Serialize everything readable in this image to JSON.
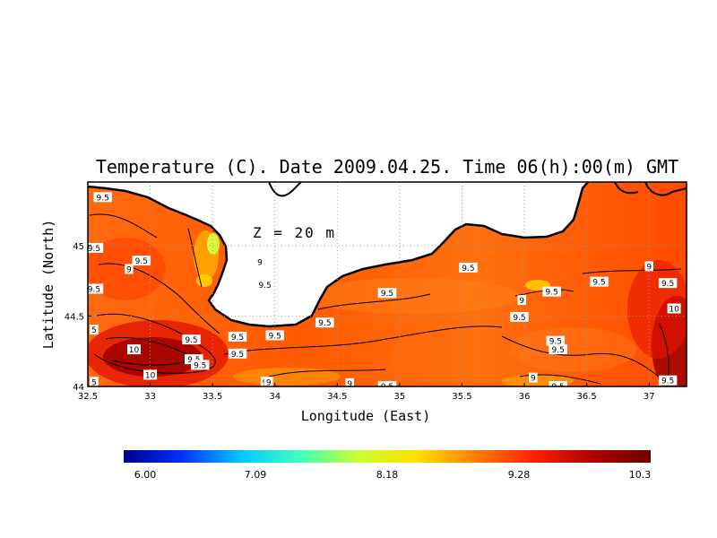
{
  "chart_data": {
    "type": "heatmap",
    "title": "Temperature (C). Date 2009.04.25. Time 06(h):00(m) GMT",
    "xlabel": "Longitude (East)",
    "ylabel": "Latitude (North)",
    "annotation": "Z = 20 m",
    "xlim": [
      32.5,
      37.3
    ],
    "ylim": [
      44.0,
      45.45
    ],
    "x_ticks": [
      "32.5",
      "33",
      "33.5",
      "34",
      "34.5",
      "35",
      "35.5",
      "36",
      "36.5",
      "37"
    ],
    "y_ticks": [
      "44",
      "44.5",
      "45"
    ],
    "grid": true,
    "colorbar": {
      "min": 6.0,
      "max": 10.3,
      "tick_labels": [
        "6.00",
        "7.09",
        "8.18",
        "9.28",
        "10.3"
      ],
      "colors": [
        "#00008f",
        "#0030ff",
        "#00c8ff",
        "#40ffc0",
        "#c8ff30",
        "#ffe000",
        "#ff8000",
        "#ff2000",
        "#b00000",
        "#700000"
      ]
    },
    "contour_labels": [
      {
        "text": "9.5",
        "lon": 32.62,
        "lat": 45.34
      },
      {
        "text": "9.5",
        "lon": 32.55,
        "lat": 44.98
      },
      {
        "text": "9.5",
        "lon": 32.93,
        "lat": 44.89
      },
      {
        "text": "9",
        "lon": 32.83,
        "lat": 44.83
      },
      {
        "text": "9.5",
        "lon": 32.55,
        "lat": 44.69
      },
      {
        "text": "9",
        "lon": 33.88,
        "lat": 44.88
      },
      {
        "text": "9.5",
        "lon": 33.92,
        "lat": 44.72
      },
      {
        "text": "5",
        "lon": 32.55,
        "lat": 44.4
      },
      {
        "text": "10",
        "lon": 32.87,
        "lat": 44.26
      },
      {
        "text": "10",
        "lon": 33.0,
        "lat": 44.08
      },
      {
        "text": "9.5",
        "lon": 33.33,
        "lat": 44.33
      },
      {
        "text": "9.5",
        "lon": 33.35,
        "lat": 44.19
      },
      {
        "text": "9.5",
        "lon": 33.4,
        "lat": 44.15
      },
      {
        "text": "9.5",
        "lon": 33.7,
        "lat": 44.35
      },
      {
        "text": "9.5",
        "lon": 33.7,
        "lat": 44.23
      },
      {
        "text": "9.5",
        "lon": 34.0,
        "lat": 44.36
      },
      {
        "text": "9",
        "lon": 33.92,
        "lat": 44.03
      },
      {
        "text": "9",
        "lon": 33.95,
        "lat": 44.03
      },
      {
        "text": "9.5",
        "lon": 34.4,
        "lat": 44.45
      },
      {
        "text": "9.5",
        "lon": 34.9,
        "lat": 44.66
      },
      {
        "text": "9",
        "lon": 34.6,
        "lat": 44.02
      },
      {
        "text": "9.5",
        "lon": 34.9,
        "lat": 44.0
      },
      {
        "text": "9.5",
        "lon": 35.55,
        "lat": 44.84
      },
      {
        "text": "9",
        "lon": 35.98,
        "lat": 44.61
      },
      {
        "text": "9.5",
        "lon": 36.22,
        "lat": 44.67
      },
      {
        "text": "9.5",
        "lon": 35.96,
        "lat": 44.49
      },
      {
        "text": "9.5",
        "lon": 36.6,
        "lat": 44.74
      },
      {
        "text": "9",
        "lon": 37.0,
        "lat": 44.85
      },
      {
        "text": "9.5",
        "lon": 37.15,
        "lat": 44.73
      },
      {
        "text": "10",
        "lon": 37.2,
        "lat": 44.55
      },
      {
        "text": "9.5",
        "lon": 36.25,
        "lat": 44.32
      },
      {
        "text": "9.5",
        "lon": 36.27,
        "lat": 44.26
      },
      {
        "text": "9",
        "lon": 36.07,
        "lat": 44.06
      },
      {
        "text": "9.5",
        "lon": 36.27,
        "lat": 44.0
      },
      {
        "text": "9.5",
        "lon": 37.15,
        "lat": 44.04
      },
      {
        "text": "5",
        "lon": 32.55,
        "lat": 44.03
      }
    ]
  }
}
